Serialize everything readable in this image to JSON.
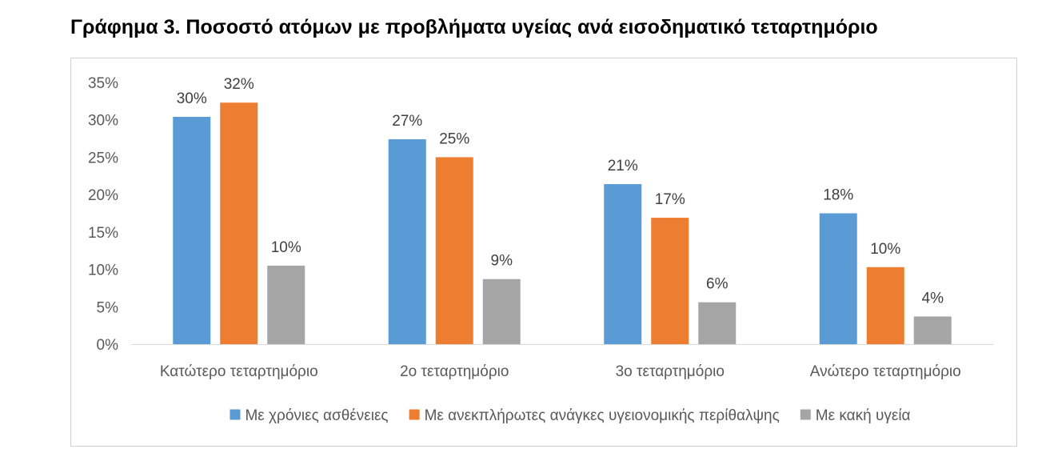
{
  "chart_data": {
    "type": "bar",
    "title": "Γράφημα 3. Ποσοστό ατόμων με προβλήματα υγείας ανά εισοδηματικό τεταρτημόριο",
    "categories": [
      "Κατώτερο τεταρτημόριο",
      "2ο τεταρτημόριο",
      "3ο τεταρτημόριο",
      "Ανώτερο τεταρτημόριο"
    ],
    "series": [
      {
        "name": "Με χρόνιες ασθένειες",
        "color": "#5B9BD5",
        "values": [
          30.4,
          27.4,
          21.4,
          17.5
        ],
        "labels": [
          "30%",
          "27%",
          "21%",
          "18%"
        ]
      },
      {
        "name": "Με ανεκπλήρωτες ανάγκες υγειονομικής περίθαλψης",
        "color": "#ED7D31",
        "values": [
          32.3,
          25.0,
          16.9,
          10.3
        ],
        "labels": [
          "32%",
          "25%",
          "17%",
          "10%"
        ]
      },
      {
        "name": "Με κακή υγεία",
        "color": "#A5A5A5",
        "values": [
          10.5,
          8.7,
          5.6,
          3.7
        ],
        "labels": [
          "10%",
          "9%",
          "6%",
          "4%"
        ]
      }
    ],
    "yticks": [
      "0%",
      "5%",
      "10%",
      "15%",
      "20%",
      "25%",
      "30%",
      "35%"
    ],
    "ylim": [
      0,
      35
    ],
    "xlabel": "",
    "ylabel": "",
    "grid": false,
    "legend": "bottom"
  }
}
